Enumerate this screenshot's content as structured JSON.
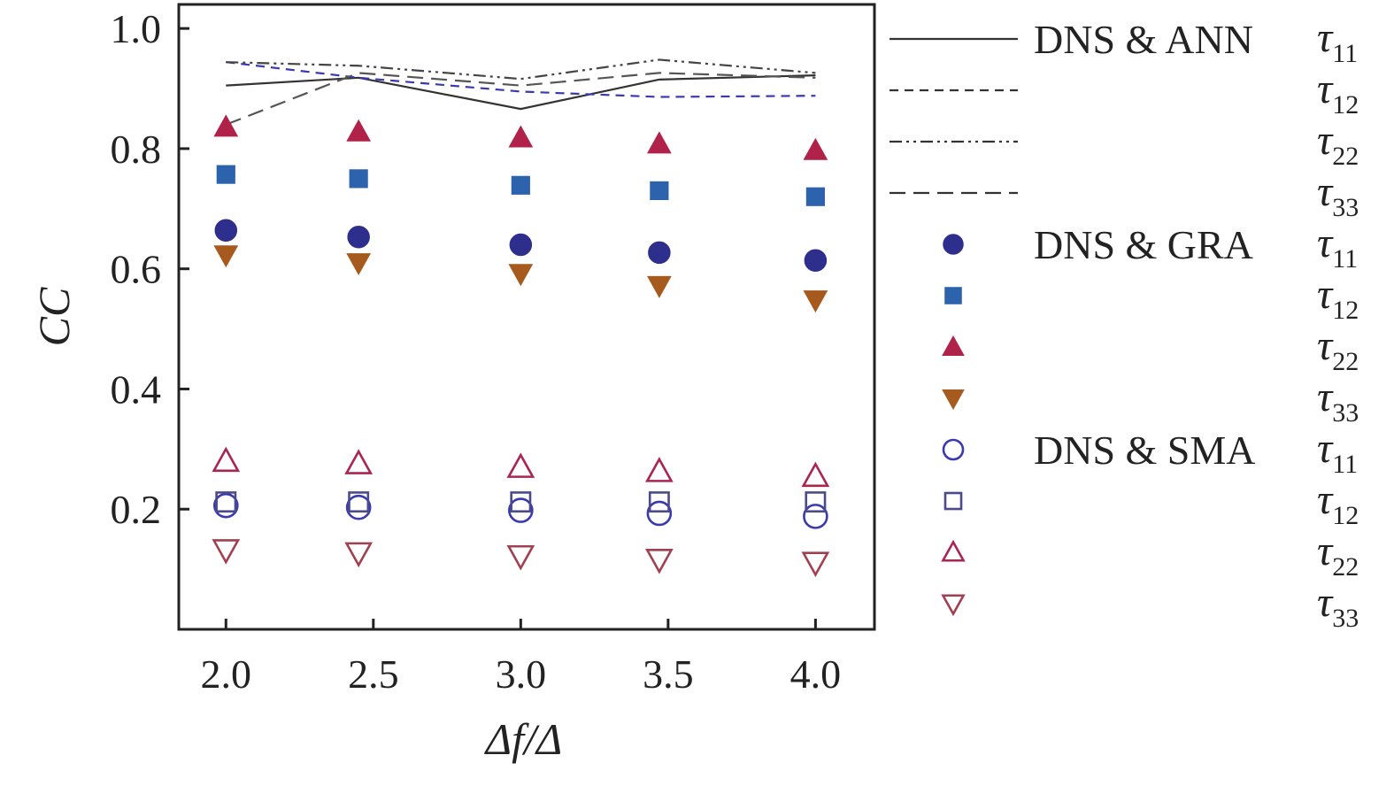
{
  "chart_data": {
    "type": "scatter",
    "xlabel": "Δf/Δ",
    "ylabel": "CC",
    "xlim": [
      1.84,
      4.2
    ],
    "ylim": [
      0.0,
      1.04
    ],
    "x_ticks": [
      "2.0",
      "2.5",
      "3.0",
      "3.5",
      "4.0"
    ],
    "y_ticks": [
      "0.2",
      "0.4",
      "0.6",
      "0.8",
      "1.0"
    ],
    "x": [
      2.0,
      2.45,
      3.0,
      3.47,
      4.0
    ],
    "groups": [
      {
        "name": "DNS & ANN",
        "style": "line",
        "series": [
          {
            "name": "τ11",
            "sub": "11",
            "dash": "solid",
            "color": "#333333",
            "values": [
              0.905,
              0.918,
              0.866,
              0.915,
              0.922
            ]
          },
          {
            "name": "τ12",
            "sub": "12",
            "dash": "dashed",
            "color": "#3a3ab0",
            "values": [
              0.944,
              0.918,
              0.895,
              0.886,
              0.888
            ]
          },
          {
            "name": "τ22",
            "sub": "22",
            "dash": "dashdotdot",
            "color": "#444444",
            "values": [
              0.944,
              0.938,
              0.916,
              0.948,
              0.926
            ]
          },
          {
            "name": "τ33",
            "sub": "33",
            "dash": "longdash",
            "color": "#555555",
            "values": [
              0.84,
              0.926,
              0.905,
              0.926,
              0.918
            ]
          }
        ]
      },
      {
        "name": "DNS & GRA",
        "style": "filled",
        "series": [
          {
            "name": "τ11",
            "sub": "11",
            "marker": "circle",
            "color": "#2e2e8c",
            "values": [
              0.664,
              0.653,
              0.64,
              0.627,
              0.614
            ]
          },
          {
            "name": "τ12",
            "sub": "12",
            "marker": "square",
            "color": "#2d62ad",
            "values": [
              0.757,
              0.75,
              0.739,
              0.73,
              0.72
            ]
          },
          {
            "name": "τ22",
            "sub": "22",
            "marker": "triangle-up",
            "color": "#b0224a",
            "values": [
              0.836,
              0.828,
              0.818,
              0.808,
              0.797
            ]
          },
          {
            "name": "τ33",
            "sub": "33",
            "marker": "triangle-down",
            "color": "#a65a1e",
            "values": [
              0.623,
              0.61,
              0.592,
              0.572,
              0.548
            ]
          }
        ]
      },
      {
        "name": "DNS & SMA",
        "style": "open",
        "series": [
          {
            "name": "τ11",
            "sub": "11",
            "marker": "circle",
            "color": "#3a3ab0",
            "values": [
              0.206,
              0.203,
              0.198,
              0.193,
              0.188
            ]
          },
          {
            "name": "τ12",
            "sub": "12",
            "marker": "square",
            "color": "#4a4a8c",
            "values": [
              0.212,
              0.212,
              0.212,
              0.212,
              0.212
            ]
          },
          {
            "name": "τ22",
            "sub": "22",
            "marker": "triangle-up",
            "color": "#a82650",
            "values": [
              0.28,
              0.276,
              0.27,
              0.263,
              0.255
            ]
          },
          {
            "name": "τ33",
            "sub": "33",
            "marker": "triangle-down",
            "color": "#a04050",
            "values": [
              0.132,
              0.127,
              0.122,
              0.116,
              0.111
            ]
          }
        ]
      }
    ]
  }
}
